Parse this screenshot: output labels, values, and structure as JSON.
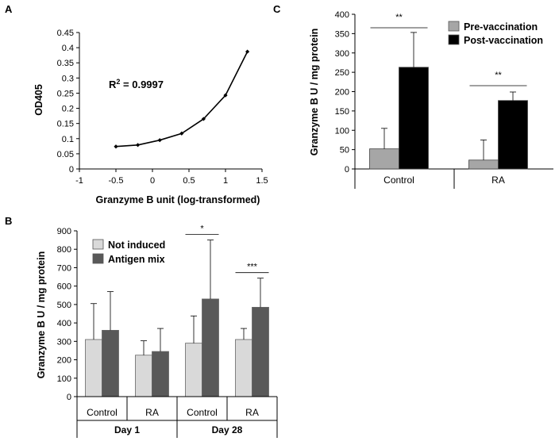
{
  "chart_data": [
    {
      "panel": "A",
      "type": "line",
      "xlabel": "Granzyme B unit (log-transformed)",
      "ylabel": "OD405",
      "xlim": [
        -1,
        1.5
      ],
      "ylim": [
        0,
        0.45
      ],
      "x_ticks": [
        "-1",
        "-0.5",
        "0",
        "0.5",
        "1",
        "1.5"
      ],
      "y_ticks": [
        "0",
        "0.05",
        "0.1",
        "0.15",
        "0.2",
        "0.25",
        "0.3",
        "0.35",
        "0.4",
        "0.45"
      ],
      "annotation": {
        "r2_prefix": "R",
        "r2_sup": "2",
        "r2_suffix": " = 0.9997"
      },
      "x": [
        -0.5,
        -0.2,
        0.1,
        0.4,
        0.7,
        1.0,
        1.3
      ],
      "y": [
        0.074,
        0.079,
        0.095,
        0.117,
        0.165,
        0.243,
        0.387
      ]
    },
    {
      "panel": "B",
      "type": "bar",
      "ylabel": "Granzyme B U / mg protein",
      "ylim": [
        0,
        900
      ],
      "y_ticks": [
        "0",
        "100",
        "200",
        "300",
        "400",
        "500",
        "600",
        "700",
        "800",
        "900"
      ],
      "groups": [
        {
          "label": "Day 1",
          "categories": [
            "Control",
            "RA"
          ]
        },
        {
          "label": "Day 28",
          "categories": [
            "Control",
            "RA"
          ]
        }
      ],
      "series": [
        {
          "name": "Not induced",
          "color": "#d9d9d9",
          "values": [
            310,
            225,
            290,
            310
          ],
          "errors": [
            195,
            78,
            148,
            60
          ]
        },
        {
          "name": "Antigen mix",
          "color": "#595959",
          "values": [
            360,
            245,
            530,
            485
          ],
          "errors": [
            210,
            125,
            320,
            158
          ]
        }
      ],
      "significance": [
        {
          "category_index": 2,
          "label": "*"
        },
        {
          "category_index": 3,
          "label": "***"
        }
      ]
    },
    {
      "panel": "C",
      "type": "bar",
      "ylabel": "Granzyme B U / mg protein",
      "ylim": [
        0,
        400
      ],
      "y_ticks": [
        "0",
        "50",
        "100",
        "150",
        "200",
        "250",
        "300",
        "350",
        "400"
      ],
      "categories": [
        "Control",
        "RA"
      ],
      "series": [
        {
          "name": "Pre-vaccination",
          "color": "#a6a6a6",
          "values": [
            52,
            23
          ],
          "errors": [
            53,
            52
          ]
        },
        {
          "name": "Post-vaccination",
          "color": "#000000",
          "values": [
            263,
            177
          ],
          "errors": [
            90,
            22
          ]
        }
      ],
      "significance": [
        {
          "category_index": 0,
          "label": "**"
        },
        {
          "category_index": 1,
          "label": "**"
        }
      ]
    }
  ]
}
